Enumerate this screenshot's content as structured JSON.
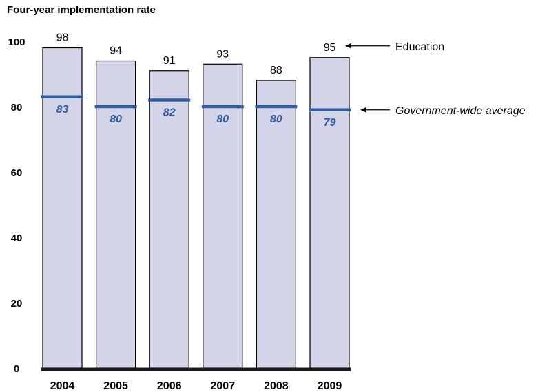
{
  "chart_data": {
    "type": "bar",
    "title": "Four-year implementation rate",
    "categories": [
      "2004",
      "2005",
      "2006",
      "2007",
      "2008",
      "2009"
    ],
    "series": [
      {
        "name": "Education",
        "values": [
          98,
          94,
          91,
          93,
          88,
          95
        ]
      },
      {
        "name": "Government-wide average",
        "values": [
          83,
          80,
          82,
          80,
          80,
          79
        ]
      }
    ],
    "ylim": [
      0,
      100
    ],
    "yticks": [
      0,
      20,
      40,
      60,
      80,
      100
    ],
    "grid": false,
    "annotations": [
      {
        "text": "Education",
        "series": "Education",
        "category": "2009"
      },
      {
        "text": "Government-wide average",
        "series": "Government-wide average",
        "category": "2009"
      }
    ],
    "colors": {
      "bar_fill": "#d3d4e8",
      "bar_stroke": "#000000",
      "average_line": "#2e5c9e",
      "average_label": "#2e5c9e",
      "baseline": "#1a1a1a"
    }
  }
}
